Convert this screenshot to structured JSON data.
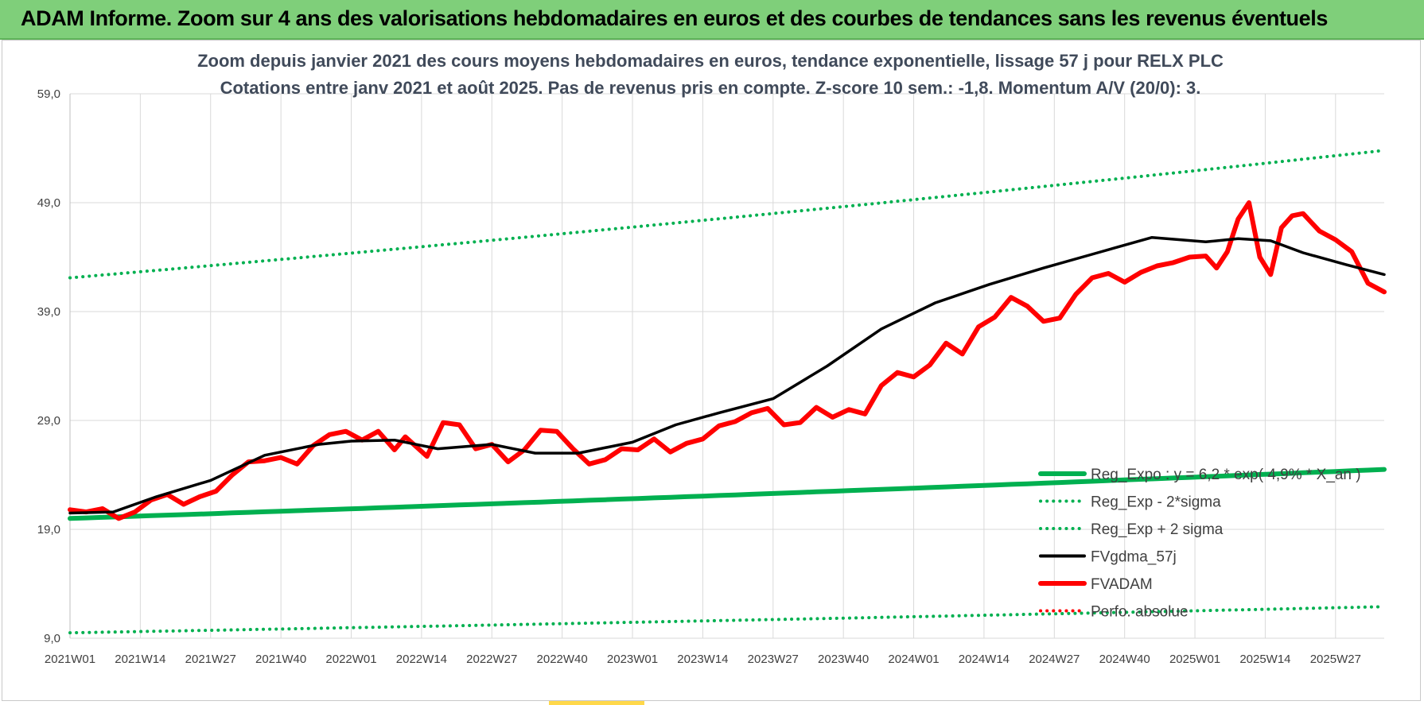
{
  "header": {
    "title": "ADAM Informe. Zoom sur 4 ans des valorisations hebdomadaires en euros et des courbes de tendances sans les revenus éventuels"
  },
  "colors": {
    "header_bg": "#7fcf7a",
    "reg_expo": "#00b050",
    "fvgdma": "#000000",
    "fvadam": "#ff0000",
    "grid": "#d9d9d9",
    "title_text": "#404a5a"
  },
  "chart_data": {
    "type": "line",
    "title": "Zoom depuis janvier 2021 des cours moyens hebdomadaires en euros, tendance exponentielle, lissage 57 j pour RELX PLC",
    "subtitle": "Cotations entre janv 2021 et août 2025.  Pas de revenus pris en compte. Z-score 10 sem.: -1,8. Momentum A/V (20/0): 3.",
    "xlabel": "",
    "ylabel": "",
    "ylim": [
      9,
      59
    ],
    "yticks": [
      "59,0",
      "49,0",
      "39,0",
      "29,0",
      "19,0",
      "9,0"
    ],
    "ytick_values": [
      59,
      49,
      39,
      29,
      19,
      9
    ],
    "x_ticks": [
      "2021W01",
      "2021W14",
      "2021W27",
      "2021W40",
      "2022W01",
      "2022W14",
      "2022W27",
      "2022W40",
      "2023W01",
      "2023W14",
      "2023W27",
      "2023W40",
      "2024W01",
      "2024W14",
      "2024W27",
      "2024W40",
      "2025W01",
      "2025W14",
      "2025W27"
    ],
    "x_range_weeks": [
      0,
      243
    ],
    "grid": true,
    "legend_position": "bottom-right",
    "series": [
      {
        "name": "Reg_Expo : y = 6,2 * exp( 4,9% * X_an )",
        "style": "solid-thick",
        "color": "#00b050",
        "x": [
          0,
          243
        ],
        "y": [
          20.0,
          24.5
        ]
      },
      {
        "name": "Reg_Exp - 2*sigma",
        "style": "dotted",
        "color": "#00b050",
        "x": [
          0,
          243
        ],
        "y": [
          9.5,
          11.9
        ]
      },
      {
        "name": "Reg_Exp + 2 sigma",
        "style": "dotted",
        "color": "#00b050",
        "x": [
          0,
          243
        ],
        "y": [
          42.1,
          53.8
        ]
      },
      {
        "name": "FVgdma_57j",
        "style": "solid",
        "color": "#000000",
        "x": [
          0,
          8,
          16,
          26,
          36,
          46,
          52,
          60,
          68,
          78,
          86,
          94,
          104,
          112,
          120,
          130,
          140,
          150,
          160,
          170,
          180,
          190,
          200,
          210,
          216,
          222,
          228,
          236,
          243
        ],
        "y": [
          20.5,
          20.6,
          22.0,
          23.5,
          25.8,
          26.8,
          27.1,
          27.2,
          26.4,
          26.8,
          26.0,
          26.0,
          27.0,
          28.6,
          29.7,
          31.0,
          34.0,
          37.4,
          39.8,
          41.5,
          43.0,
          44.4,
          45.8,
          45.4,
          45.7,
          45.5,
          44.4,
          43.3,
          42.4
        ]
      },
      {
        "name": "FVADAM",
        "style": "solid-thick",
        "color": "#ff0000",
        "x": [
          0,
          3,
          6,
          9,
          12,
          15,
          18,
          21,
          24,
          27,
          30,
          33,
          36,
          39,
          42,
          45,
          48,
          51,
          54,
          57,
          60,
          62,
          64,
          66,
          69,
          72,
          75,
          78,
          81,
          84,
          87,
          90,
          93,
          96,
          99,
          102,
          105,
          108,
          111,
          114,
          117,
          120,
          123,
          126,
          129,
          132,
          135,
          138,
          141,
          144,
          147,
          150,
          153,
          156,
          159,
          162,
          165,
          168,
          171,
          174,
          177,
          180,
          183,
          186,
          189,
          192,
          195,
          198,
          201,
          204,
          207,
          210,
          212,
          214,
          216,
          218,
          220,
          222,
          224,
          226,
          228,
          231,
          234,
          237,
          240,
          243
        ],
        "y": [
          20.8,
          20.6,
          20.9,
          20.0,
          20.6,
          21.7,
          22.2,
          21.3,
          22.0,
          22.5,
          24.0,
          25.2,
          25.3,
          25.6,
          25.0,
          26.7,
          27.7,
          28.0,
          27.2,
          28.0,
          26.3,
          27.5,
          26.6,
          25.7,
          28.8,
          28.6,
          26.4,
          26.8,
          25.2,
          26.3,
          28.1,
          28.0,
          26.4,
          25.0,
          25.4,
          26.4,
          26.3,
          27.3,
          26.1,
          26.9,
          27.3,
          28.5,
          28.9,
          29.7,
          30.1,
          28.6,
          28.8,
          30.2,
          29.3,
          30.0,
          29.6,
          32.2,
          33.4,
          33.0,
          34.1,
          36.1,
          35.1,
          37.6,
          38.5,
          40.3,
          39.5,
          38.1,
          38.4,
          40.6,
          42.1,
          42.5,
          41.7,
          42.6,
          43.2,
          43.5,
          44.0,
          44.1,
          43.0,
          44.5,
          47.5,
          49.0,
          44.0,
          42.4,
          46.7,
          47.8,
          48.0,
          46.4,
          45.6,
          44.5,
          41.6,
          40.8
        ]
      },
      {
        "name": "Perfo. absolue",
        "style": "dotted",
        "color": "#ff0000",
        "x": [],
        "y": []
      }
    ]
  }
}
